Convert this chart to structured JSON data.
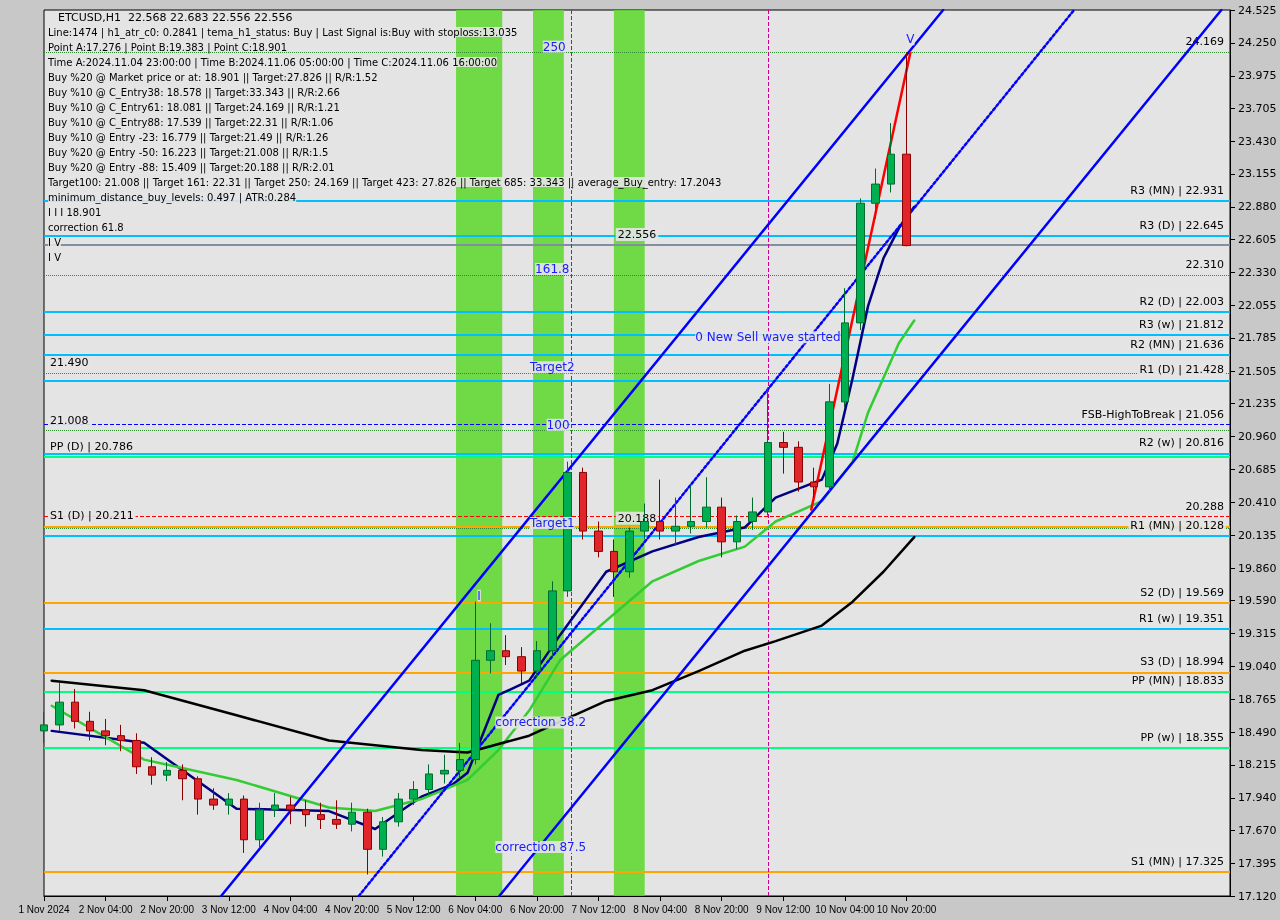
{
  "chart_data": {
    "type": "candlestick",
    "title": "ETCUSD,H1  22.568 22.683 22.556 22.556",
    "annotations": [
      "Line:1474 | h1_atr_c0: 0.2841 | tema_h1_status: Buy | Last Signal is:Buy with stoploss:13.035",
      "Point A:17.276 | Point B:19.383 | Point C:18.901",
      "Time A:2024.11.04 23:00:00 | Time B:2024.11.06 05:00:00 | Time C:2024.11.06 16:00:00",
      "Buy %20 @ Market price or at: 18.901 || Target:27.826 || R/R:1.52",
      "Buy %10 @ C_Entry38: 18.578 || Target:33.343 || R/R:2.66",
      "Buy %10 @ C_Entry61: 18.081 || Target:24.169 || R/R:1.21",
      "Buy %10 @ C_Entry88: 17.539 || Target:22.31 || R/R:1.06",
      "Buy %10 @ Entry -23: 16.779 || Target:21.49 || R/R:1.26",
      "Buy %20 @ Entry -50: 16.223 || Target:21.008 || R/R:1.5",
      "Buy %20 @ Entry -88: 15.409 || Target:20.188 || R/R:2.01",
      "Target100: 21.008 || Target 161: 22.31 || Target 250: 24.169 || Target 423: 27.826 || Target 685: 33.343 || average_Buy_entry: 17.2043",
      "minimum_distance_buy_levels: 0.497 | ATR:0.284",
      {
        "text": "250",
        "x": "2024-11-07T00:30",
        "y": 24.169
      },
      {
        "text": "161.8",
        "x": "2024-11-07T00:00",
        "y": 22.31
      },
      {
        "text": "Target2",
        "x": "2024-11-07T00:00",
        "y": 21.49
      },
      {
        "text": "100",
        "x": "2024-11-07T01:30",
        "y": 21.008
      },
      {
        "text": "Target1",
        "x": "2024-11-07T00:00",
        "y": 20.188
      },
      {
        "text": "0 New Sell wave started",
        "x": "2024-11-09T08:00",
        "y": 21.74
      },
      "I I I 18.901",
      {
        "text": "correction 38.2",
        "x": "2024-11-06T21:00",
        "y": 18.52
      },
      "correction 61.8",
      {
        "text": "correction 87.5",
        "x": "2024-11-06T21:00",
        "y": 17.48
      },
      {
        "text": "I",
        "x": "2024-11-06T05:00",
        "y": 19.58
      },
      "I V",
      "I V",
      {
        "text": "V",
        "x": "2024-11-10T21:00",
        "y": 24.23
      }
    ],
    "x": [
      "2024-11-01T12:00",
      "2024-11-01T16:00",
      "2024-11-01T20:00",
      "2024-11-02T00:00",
      "2024-11-02T04:00",
      "2024-11-02T08:00",
      "2024-11-02T12:00",
      "2024-11-02T16:00",
      "2024-11-02T20:00",
      "2024-11-03T00:00",
      "2024-11-03T04:00",
      "2024-11-03T08:00",
      "2024-11-03T12:00",
      "2024-11-03T16:00",
      "2024-11-03T20:00",
      "2024-11-04T00:00",
      "2024-11-04T04:00",
      "2024-11-04T08:00",
      "2024-11-04T12:00",
      "2024-11-04T16:00",
      "2024-11-04T20:00",
      "2024-11-05T00:00",
      "2024-11-05T04:00",
      "2024-11-05T08:00",
      "2024-11-05T12:00",
      "2024-11-05T16:00",
      "2024-11-05T20:00",
      "2024-11-06T00:00",
      "2024-11-06T04:00",
      "2024-11-06T08:00",
      "2024-11-06T12:00",
      "2024-11-06T16:00",
      "2024-11-06T20:00",
      "2024-11-07T00:00",
      "2024-11-07T04:00",
      "2024-11-07T08:00",
      "2024-11-07T12:00",
      "2024-11-07T16:00",
      "2024-11-07T20:00",
      "2024-11-08T00:00",
      "2024-11-08T04:00",
      "2024-11-08T08:00",
      "2024-11-08T12:00",
      "2024-11-08T16:00",
      "2024-11-08T20:00",
      "2024-11-09T00:00",
      "2024-11-09T04:00",
      "2024-11-09T08:00",
      "2024-11-09T12:00",
      "2024-11-09T16:00",
      "2024-11-09T20:00",
      "2024-11-10T00:00",
      "2024-11-10T04:00",
      "2024-11-10T08:00",
      "2024-11-10T12:00",
      "2024-11-10T16:00",
      "2024-11-10T20:00"
    ],
    "ohlc": [
      [
        18.5,
        18.66,
        18.4,
        18.55
      ],
      [
        18.55,
        18.9,
        18.5,
        18.74
      ],
      [
        18.74,
        18.85,
        18.52,
        18.58
      ],
      [
        18.58,
        18.66,
        18.42,
        18.5
      ],
      [
        18.5,
        18.6,
        18.38,
        18.46
      ],
      [
        18.46,
        18.55,
        18.33,
        18.42
      ],
      [
        18.42,
        18.48,
        18.14,
        18.2
      ],
      [
        18.2,
        18.28,
        18.05,
        18.13
      ],
      [
        18.13,
        18.24,
        18.08,
        18.17
      ],
      [
        18.17,
        18.22,
        17.92,
        18.1
      ],
      [
        18.1,
        18.12,
        17.8,
        17.93
      ],
      [
        17.93,
        18.02,
        17.84,
        17.88
      ],
      [
        17.88,
        17.98,
        17.8,
        17.93
      ],
      [
        17.93,
        17.96,
        17.48,
        17.59
      ],
      [
        17.59,
        17.9,
        17.52,
        17.84
      ],
      [
        17.84,
        17.98,
        17.78,
        17.88
      ],
      [
        17.88,
        17.95,
        17.72,
        17.84
      ],
      [
        17.84,
        17.92,
        17.7,
        17.8
      ],
      [
        17.8,
        17.9,
        17.68,
        17.76
      ],
      [
        17.76,
        17.92,
        17.68,
        17.72
      ],
      [
        17.72,
        17.9,
        17.66,
        17.82
      ],
      [
        17.82,
        17.85,
        17.3,
        17.51
      ],
      [
        17.51,
        17.78,
        17.45,
        17.74
      ],
      [
        17.74,
        17.98,
        17.7,
        17.93
      ],
      [
        17.93,
        18.08,
        17.88,
        18.01
      ],
      [
        18.01,
        18.22,
        17.96,
        18.14
      ],
      [
        18.14,
        18.3,
        18.06,
        18.17
      ],
      [
        18.17,
        18.4,
        18.1,
        18.26
      ],
      [
        18.26,
        19.58,
        18.22,
        19.09
      ],
      [
        19.09,
        19.4,
        18.98,
        19.17
      ],
      [
        19.17,
        19.3,
        19.05,
        19.12
      ],
      [
        19.12,
        19.2,
        18.9,
        19.0
      ],
      [
        19.0,
        19.25,
        18.95,
        19.17
      ],
      [
        19.17,
        19.75,
        19.12,
        19.67
      ],
      [
        19.67,
        20.75,
        19.62,
        20.66
      ],
      [
        20.66,
        20.7,
        20.1,
        20.17
      ],
      [
        20.17,
        20.25,
        19.95,
        20.0
      ],
      [
        20.0,
        20.1,
        19.62,
        19.83
      ],
      [
        19.83,
        20.2,
        19.78,
        20.17
      ],
      [
        20.17,
        20.4,
        20.1,
        20.25
      ],
      [
        20.25,
        20.6,
        20.1,
        20.17
      ],
      [
        20.17,
        20.45,
        20.05,
        20.21
      ],
      [
        20.21,
        20.55,
        20.15,
        20.25
      ],
      [
        20.25,
        20.62,
        20.2,
        20.37
      ],
      [
        20.37,
        20.45,
        19.95,
        20.08
      ],
      [
        20.08,
        20.3,
        20.02,
        20.25
      ],
      [
        20.25,
        20.45,
        20.18,
        20.33
      ],
      [
        20.33,
        21.37,
        20.3,
        20.91
      ],
      [
        20.91,
        21.0,
        20.65,
        20.87
      ],
      [
        20.87,
        20.92,
        20.5,
        20.58
      ],
      [
        20.58,
        20.7,
        20.45,
        20.54
      ],
      [
        20.54,
        21.4,
        20.5,
        21.25
      ],
      [
        21.25,
        22.2,
        21.2,
        21.91
      ],
      [
        21.91,
        22.95,
        21.85,
        22.91
      ],
      [
        22.91,
        23.2,
        22.78,
        23.07
      ],
      [
        23.07,
        23.58,
        23.0,
        23.32
      ],
      [
        23.32,
        24.169,
        22.55,
        22.556
      ]
    ],
    "series": [
      {
        "type": "line",
        "color": "#000080",
        "x": [
          "2024-11-01T14:00",
          "2024-11-02T14:00",
          "2024-11-03T14:00",
          "2024-11-04T14:00",
          "2024-11-05T02:00",
          "2024-11-05T14:00",
          "2024-11-05T22:00",
          "2024-11-06T02:00",
          "2024-11-06T10:00",
          "2024-11-06T18:00",
          "2024-11-07T02:00",
          "2024-11-07T14:00",
          "2024-11-08T02:00",
          "2024-11-08T14:00",
          "2024-11-09T02:00",
          "2024-11-09T10:00",
          "2024-11-09T18:00",
          "2024-11-09T22:00",
          "2024-11-10T02:00",
          "2024-11-10T06:00",
          "2024-11-10T10:00",
          "2024-11-10T14:00",
          "2024-11-10T18:00",
          "2024-11-10T22:00"
        ],
        "values": [
          18.5,
          18.4,
          17.85,
          17.83,
          17.68,
          17.95,
          18.05,
          18.15,
          18.8,
          18.92,
          19.3,
          19.83,
          20.0,
          20.12,
          20.2,
          20.45,
          20.55,
          20.6,
          20.9,
          21.45,
          22.05,
          22.45,
          22.7,
          22.88
        ]
      },
      {
        "type": "line",
        "color": "#33cc33",
        "x": [
          "2024-11-01T14:00",
          "2024-11-02T14:00",
          "2024-11-03T14:00",
          "2024-11-04T14:00",
          "2024-11-05T02:00",
          "2024-11-05T14:00",
          "2024-11-06T02:00",
          "2024-11-06T10:00",
          "2024-11-06T18:00",
          "2024-11-07T02:00",
          "2024-11-07T14:00",
          "2024-11-08T02:00",
          "2024-11-08T14:00",
          "2024-11-09T02:00",
          "2024-11-09T10:00",
          "2024-11-09T22:00",
          "2024-11-10T06:00",
          "2024-11-10T10:00",
          "2024-11-10T18:00",
          "2024-11-10T22:00"
        ],
        "values": [
          18.71,
          18.26,
          18.09,
          17.86,
          17.83,
          17.93,
          18.09,
          18.34,
          18.67,
          19.09,
          19.42,
          19.75,
          19.92,
          20.04,
          20.25,
          20.42,
          20.75,
          21.16,
          21.74,
          21.93
        ]
      },
      {
        "type": "line",
        "color": "#000000",
        "x": [
          "2024-11-01T14:00",
          "2024-11-02T14:00",
          "2024-11-03T14:00",
          "2024-11-04T14:00",
          "2024-11-05T14:00",
          "2024-11-06T02:00",
          "2024-11-06T18:00",
          "2024-11-07T14:00",
          "2024-11-08T02:00",
          "2024-11-08T14:00",
          "2024-11-09T02:00",
          "2024-11-09T10:00",
          "2024-11-09T22:00",
          "2024-11-10T06:00",
          "2024-11-10T14:00",
          "2024-11-10T22:00"
        ],
        "values": [
          18.92,
          18.84,
          18.63,
          18.42,
          18.34,
          18.32,
          18.46,
          18.75,
          18.84,
          19.0,
          19.17,
          19.25,
          19.38,
          19.58,
          19.83,
          20.12
        ]
      },
      {
        "type": "line",
        "color": "#0000ff",
        "x": [
          "2024-11-03T10:00",
          "2024-11-11T05:30"
        ],
        "values": [
          17.12,
          24.525
        ]
      },
      {
        "type": "line",
        "color": "#0000ff",
        "x": [
          "2024-11-06T10:15",
          "2024-11-14T05:45"
        ],
        "values": [
          17.12,
          24.525
        ]
      },
      {
        "type": "line",
        "color": "#0000ff",
        "line_style": "dotted",
        "x": [
          "2024-11-04T21:45",
          "2024-11-12T15:30"
        ],
        "values": [
          17.12,
          24.525
        ]
      },
      {
        "type": "line",
        "color": "#ff0000",
        "x": [
          "2024-11-09T19:15",
          "2024-11-10T21:00"
        ],
        "values": [
          20.35,
          24.169
        ]
      }
    ],
    "ref_lines": [
      {
        "axis": "y",
        "value": 22.931,
        "label": "R3 (MN) | 22.931",
        "color": "#00bfff"
      },
      {
        "axis": "y",
        "value": 21.636,
        "label": "R2 (MN) | 21.636",
        "color": "#00bfff"
      },
      {
        "axis": "y",
        "value": 20.128,
        "label": "R1 (MN) | 20.128",
        "color": "#00bfff"
      },
      {
        "axis": "y",
        "value": 18.833,
        "label": "PP (MN) | 18.833",
        "color": "#00ff80"
      },
      {
        "axis": "y",
        "value": 17.325,
        "label": "S1 (MN) | 17.325",
        "color": "#ffa500"
      },
      {
        "axis": "y",
        "value": 21.812,
        "label": "R3 (w) | 21.812",
        "color": "#00bfff"
      },
      {
        "axis": "y",
        "value": 20.816,
        "label": "R2 (w) | 20.816",
        "color": "#00bfff"
      },
      {
        "axis": "y",
        "value": 19.351,
        "label": "R1 (w) | 19.351",
        "color": "#00bfff"
      },
      {
        "axis": "y",
        "value": 18.355,
        "label": "PP (w) | 18.355",
        "color": "#00ff80"
      },
      {
        "axis": "y",
        "value": 22.645,
        "label": "R3 (D) | 22.645",
        "color": "#00bfff"
      },
      {
        "axis": "y",
        "value": 22.003,
        "label": "R2 (D) | 22.003",
        "color": "#00bfff"
      },
      {
        "axis": "y",
        "value": 21.428,
        "label": "R1 (D) | 21.428",
        "color": "#00bfff"
      },
      {
        "axis": "y",
        "value": 20.786,
        "label": "PP (D) | 20.786",
        "color": "#00ff80"
      },
      {
        "axis": "y",
        "value": 20.211,
        "label": "S1 (D) | 20.211",
        "color": "#ffa500"
      },
      {
        "axis": "y",
        "value": 19.569,
        "label": "S2 (D) | 19.569",
        "color": "#ffa500"
      },
      {
        "axis": "y",
        "value": 18.994,
        "label": "S3 (D) | 18.994",
        "color": "#ffa500"
      },
      {
        "axis": "y",
        "value": 21.056,
        "label": "FSB-HighToBreak | 21.056",
        "color": "#0000ff",
        "line_style": "dashed"
      },
      {
        "axis": "y",
        "value": 24.169,
        "label": "24.169",
        "color": "#2e8b2e",
        "line_style": "dotted"
      },
      {
        "axis": "y",
        "value": 22.31,
        "label": "22.310",
        "color": "#2e8b2e",
        "line_style": "dotted"
      },
      {
        "axis": "y",
        "value": 21.49,
        "label": "21.490",
        "color": "#2e8b2e",
        "line_style": "dotted"
      },
      {
        "axis": "y",
        "value": 21.008,
        "label": "21.008",
        "color": "#2e8b2e",
        "line_style": "dotted"
      },
      {
        "axis": "y",
        "value": 20.188,
        "label": "20.188",
        "color": "#2e8b2e",
        "line_style": "dotted"
      },
      {
        "axis": "y",
        "value": 20.288,
        "label": "20.288",
        "color": "#ff0000",
        "line_style": "dashed"
      },
      {
        "axis": "y",
        "value": 22.556,
        "label": "22.556",
        "color": "#8090a0"
      },
      {
        "axis": "x",
        "value": "2024-11-07T05:00",
        "color": "#cc0099",
        "line_style": "dashed"
      },
      {
        "axis": "x",
        "value": "2024-11-09T08:00",
        "color": "#cc0099",
        "line_style": "dashed"
      }
    ],
    "bands": [
      {
        "axis": "x",
        "from": "2024-11-05T23:00",
        "to": "2024-11-06T11:00",
        "color": "#5ad82a"
      },
      {
        "axis": "x",
        "from": "2024-11-06T19:00",
        "to": "2024-11-07T03:00",
        "color": "#5ad82a"
      },
      {
        "axis": "x",
        "from": "2024-11-07T16:00",
        "to": "2024-11-08T00:00",
        "color": "#5ad82a"
      }
    ],
    "marker": "none",
    "xlim": [
      "2024-11-01T12:00",
      "2024-11-14T08:00"
    ],
    "ylim": [
      17.12,
      24.525
    ],
    "xticks": [
      {
        "value": "2024-11-01T12:00",
        "label": "1 Nov 2024"
      },
      {
        "value": "2024-11-02T04:00",
        "label": "2 Nov 04:00"
      },
      {
        "value": "2024-11-02T20:00",
        "label": "2 Nov 20:00"
      },
      {
        "value": "2024-11-03T12:00",
        "label": "3 Nov 12:00"
      },
      {
        "value": "2024-11-04T04:00",
        "label": "4 Nov 04:00"
      },
      {
        "value": "2024-11-04T20:00",
        "label": "4 Nov 20:00"
      },
      {
        "value": "2024-11-05T12:00",
        "label": "5 Nov 12:00"
      },
      {
        "value": "2024-11-06T04:00",
        "label": "6 Nov 04:00"
      },
      {
        "value": "2024-11-06T20:00",
        "label": "6 Nov 20:00"
      },
      {
        "value": "2024-11-07T12:00",
        "label": "7 Nov 12:00"
      },
      {
        "value": "2024-11-08T04:00",
        "label": "8 Nov 04:00"
      },
      {
        "value": "2024-11-08T20:00",
        "label": "8 Nov 20:00"
      },
      {
        "value": "2024-11-09T12:00",
        "label": "9 Nov 12:00"
      },
      {
        "value": "2024-11-10T04:00",
        "label": "10 Nov 04:00"
      },
      {
        "value": "2024-11-10T20:00",
        "label": "10 Nov 20:00"
      }
    ],
    "yticks": [
      {
        "value": 17.12,
        "label": "17.120"
      },
      17.395,
      {
        "value": 17.67,
        "label": "17.670"
      },
      {
        "value": 17.94,
        "label": "17.940"
      },
      18.215,
      {
        "value": 18.49,
        "label": "18.490"
      },
      18.765,
      {
        "value": 19.04,
        "label": "19.040"
      },
      19.315,
      {
        "value": 19.59,
        "label": "19.590"
      },
      {
        "value": 19.86,
        "label": "19.860"
      },
      20.135,
      {
        "value": 20.41,
        "label": "20.410"
      },
      20.685,
      {
        "value": 20.96,
        "label": "20.960"
      },
      21.235,
      21.505,
      21.785,
      22.055,
      {
        "value": 22.33,
        "label": "22.330"
      },
      22.605,
      {
        "value": 22.88,
        "label": "22.880"
      },
      23.155,
      {
        "value": 23.43,
        "label": "23.430"
      },
      23.705,
      23.975,
      {
        "value": 24.25,
        "label": "24.250"
      },
      24.525
    ]
  }
}
